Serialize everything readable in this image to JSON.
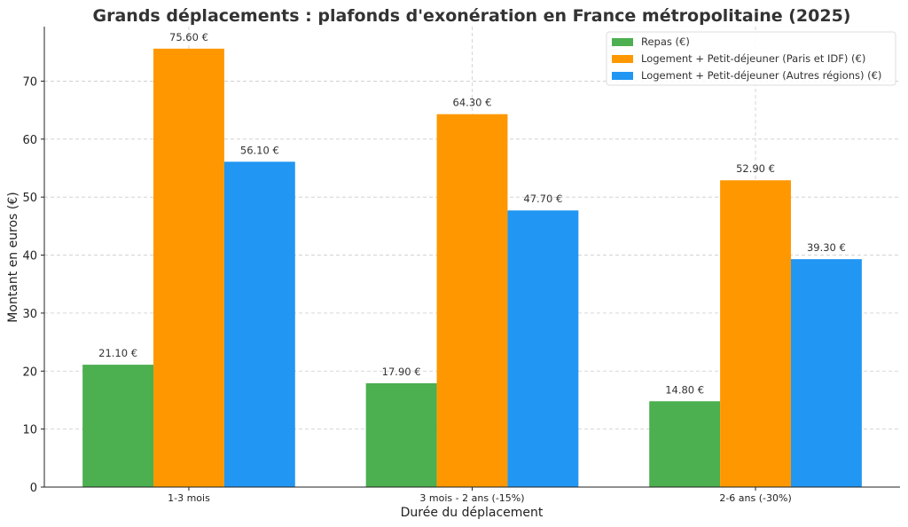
{
  "chart_data": {
    "type": "bar",
    "title": "Grands déplacements : plafonds d'exonération en France métropolitaine (2025)",
    "xlabel": "Durée du déplacement",
    "ylabel": "Montant en euros (€)",
    "categories": [
      "1-3 mois",
      "3 mois - 2 ans (-15%)",
      "2-6 ans (-30%)"
    ],
    "series": [
      {
        "name": "Repas (€)",
        "color": "#4CAF50",
        "values": [
          21.1,
          17.9,
          14.8
        ],
        "labels": [
          "21.10 €",
          "17.90 €",
          "14.80 €"
        ]
      },
      {
        "name": "Logement + Petit-déjeuner (Paris et IDF) (€)",
        "color": "#FF9800",
        "values": [
          75.6,
          64.3,
          52.9
        ],
        "labels": [
          "75.60 €",
          "64.30 €",
          "52.90 €"
        ]
      },
      {
        "name": "Logement + Petit-déjeuner (Autres régions) (€)",
        "color": "#2196F3",
        "values": [
          56.1,
          47.7,
          39.3
        ],
        "labels": [
          "56.10 €",
          "47.70 €",
          "39.30 €"
        ]
      }
    ],
    "ylim": [
      0,
      79.4
    ],
    "yticks": [
      "0",
      "10",
      "20",
      "30",
      "40",
      "50",
      "60",
      "70"
    ],
    "grid": true,
    "legend_position": "top-right"
  }
}
